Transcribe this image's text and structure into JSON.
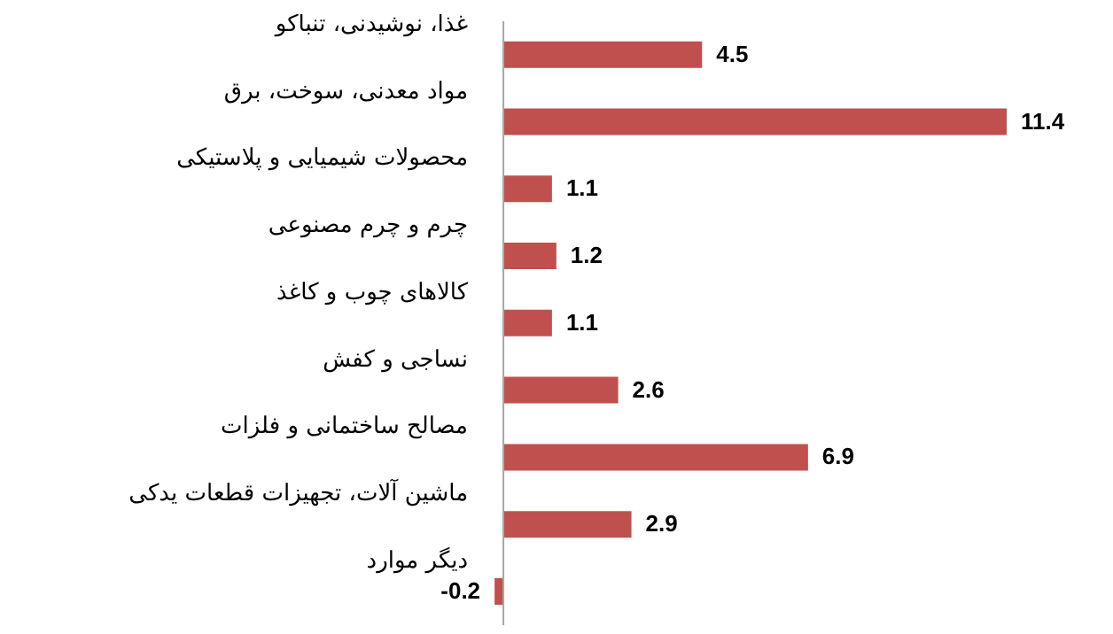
{
  "chart_data": {
    "type": "bar",
    "orientation": "horizontal",
    "categories": [
      "غذا، نوشیدنی، تنباکو",
      "مواد معدنی، سوخت، برق",
      "محصولات شیمیایی و پلاستیکی",
      "چرم و چرم مصنوعی",
      "کالاهای چوب و کاغذ",
      "نساجی و کفش",
      "مصالح ساختمانی و فلزات",
      "ماشین آلات، تجهیزات قطعات یدکی",
      "دیگر موارد"
    ],
    "values": [
      4.5,
      11.4,
      1.1,
      1.2,
      1.1,
      2.6,
      6.9,
      2.9,
      -0.2
    ],
    "color": "#c0504d",
    "data_labels": true
  }
}
